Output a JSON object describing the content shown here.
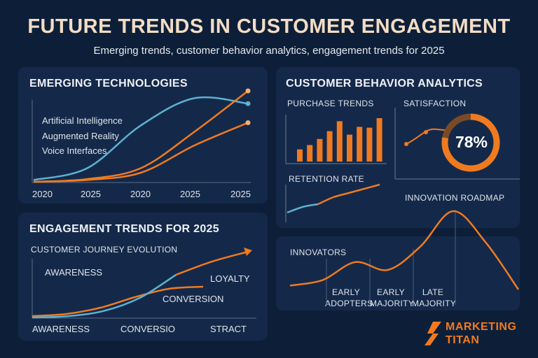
{
  "header": {
    "title": "FUTURE TRENDS IN CUSTOMER ENGAGEMENT",
    "subtitle": "Emerging trends, customer behavior analytics, engagement trends for 2025"
  },
  "colors": {
    "orange": "#f07a20",
    "blue": "#5fb0d0",
    "background": "#0d1f38",
    "panel": "#14294a"
  },
  "emerging": {
    "title": "EMERGING TECHNOLOGIES",
    "items": [
      "Artificial Intelligence",
      "Augmented Reality",
      "Voice Interfaces"
    ],
    "x_ticks": [
      "2020",
      "2025",
      "2020",
      "2025",
      "2025"
    ]
  },
  "analytics": {
    "title": "CUSTOMER BEHAVIOR ANALYTICS",
    "purchase_label": "PURCHASE TRENDS",
    "satisfaction_label": "SATISFACTION",
    "satisfaction_value": "78%",
    "retention_label": "RETENTION RATE",
    "roadmap_label": "INNOVATION ROADMAP"
  },
  "engagement": {
    "title": "ENGAGEMENT TRENDS FOR 2025",
    "subtitle": "CUSTOMER JOURNEY EVOLUTION",
    "annotations": [
      "AWARENESS",
      "LOYALTY",
      "CONVERSION"
    ],
    "x_ticks": [
      "AWARENESS",
      "CONVERSIO",
      "STRACT"
    ]
  },
  "adoption": {
    "innovators": "INNOVATORS",
    "segments": [
      {
        "line1": "EARLY",
        "line2": "ADOPTERS"
      },
      {
        "line1": "EARLY",
        "line2": "MAJORITY"
      },
      {
        "line1": "LATE",
        "line2": "MAJORITY"
      }
    ]
  },
  "brand": {
    "line1": "MARKETING",
    "line2": "TITAN"
  },
  "chart_data": [
    {
      "type": "line",
      "title": "EMERGING TECHNOLOGIES",
      "x": [
        "2020",
        "2025",
        "2020",
        "2025",
        "2025"
      ],
      "series": [
        {
          "name": "Artificial Intelligence",
          "values": [
            0.02,
            0.15,
            0.62,
            0.92,
            0.86
          ]
        },
        {
          "name": "Augmented Reality",
          "values": [
            0.0,
            0.03,
            0.15,
            0.55,
            1.0
          ]
        },
        {
          "name": "Voice Interfaces",
          "values": [
            0.0,
            0.02,
            0.1,
            0.4,
            0.65
          ]
        }
      ]
    },
    {
      "type": "bar",
      "title": "PURCHASE TRENDS",
      "values": [
        0.28,
        0.38,
        0.52,
        0.7,
        0.93,
        0.62,
        0.8,
        0.78,
        1.0
      ]
    },
    {
      "type": "pie",
      "title": "SATISFACTION",
      "values": [
        78,
        22
      ]
    },
    {
      "type": "line",
      "title": "RETENTION RATE",
      "values": [
        0.0,
        0.2,
        0.3,
        0.55,
        0.7,
        0.85,
        1.0
      ]
    },
    {
      "type": "line",
      "title": "ENGAGEMENT TRENDS FOR 2025",
      "series": [
        {
          "values": [
            0.0,
            0.05,
            0.2,
            0.45,
            0.65,
            0.7
          ]
        },
        {
          "values": [
            0.0,
            0.02,
            0.1,
            0.3,
            0.65,
            0.85,
            1.0
          ]
        }
      ]
    },
    {
      "type": "line",
      "title": "INNOVATION ROADMAP",
      "values": [
        0.05,
        0.12,
        0.35,
        0.25,
        0.55,
        1.0,
        0.6,
        0.0
      ]
    }
  ]
}
